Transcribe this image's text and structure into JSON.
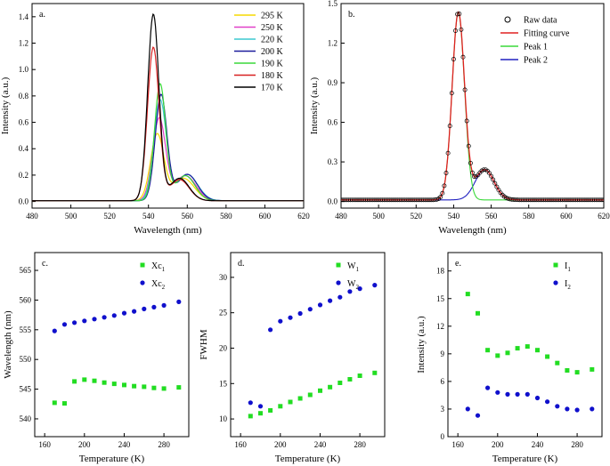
{
  "chart_data": [
    {
      "id": "a",
      "type": "line",
      "panel_label": "a.",
      "xlabel": "Wavelength (nm)",
      "ylabel": "Intensity (a.u.)",
      "xlim": [
        480,
        620
      ],
      "ylim": [
        -0.05,
        1.5
      ],
      "xticks": [
        480,
        500,
        520,
        540,
        560,
        580,
        600,
        620
      ],
      "yticks": [
        0.0,
        0.2,
        0.4,
        0.6,
        0.8,
        1.0,
        1.2,
        1.4
      ],
      "xtick_labels": [
        "480",
        "500",
        "520",
        "540",
        "560",
        "580",
        "600",
        "620"
      ],
      "ytick_labels": [
        "0.0",
        "0.2",
        "0.4",
        "0.6",
        "0.8",
        "1.0",
        "1.2",
        "1.4"
      ],
      "legend_position": "top-right",
      "series": [
        {
          "name": "295 K",
          "color": "#f5d800",
          "peak_x": 544.5,
          "amp1": 0.5,
          "w1": 3.4,
          "x2": 558,
          "amp2": 0.17,
          "w2": 5.6
        },
        {
          "name": "250 K",
          "color": "#e040c8",
          "peak_x": 545.5,
          "amp1": 0.62,
          "w1": 3.3,
          "x2": 559,
          "amp2": 0.19,
          "w2": 5.5
        },
        {
          "name": "220 K",
          "color": "#3cc8d0",
          "peak_x": 546.0,
          "amp1": 0.76,
          "w1": 3.2,
          "x2": 560,
          "amp2": 0.2,
          "w2": 5.4
        },
        {
          "name": "200 K",
          "color": "#1c1c9c",
          "peak_x": 546.5,
          "amp1": 0.8,
          "w1": 3.0,
          "x2": 560,
          "amp2": 0.2,
          "w2": 5.2
        },
        {
          "name": "190 K",
          "color": "#3ad83a",
          "peak_x": 546.0,
          "amp1": 0.88,
          "w1": 2.9,
          "x2": 559,
          "amp2": 0.19,
          "w2": 5.0
        },
        {
          "name": "180 K",
          "color": "#d82020",
          "peak_x": 542.5,
          "amp1": 1.16,
          "w1": 3.0,
          "x2": 556,
          "amp2": 0.16,
          "w2": 5.0
        },
        {
          "name": "170 K",
          "color": "#000000",
          "peak_x": 542.5,
          "amp1": 1.41,
          "w1": 2.9,
          "x2": 556,
          "amp2": 0.17,
          "w2": 5.0
        }
      ]
    },
    {
      "id": "b",
      "type": "line",
      "panel_label": "b.",
      "xlabel": "Wavelength (nm)",
      "ylabel": "Intensity (a.u.)",
      "xlim": [
        480,
        620
      ],
      "ylim": [
        -0.05,
        1.5
      ],
      "xticks": [
        480,
        500,
        520,
        540,
        560,
        580,
        600,
        620
      ],
      "yticks": [
        0.0,
        0.3,
        0.6,
        0.9,
        1.2,
        1.5
      ],
      "xtick_labels": [
        "480",
        "500",
        "520",
        "540",
        "560",
        "580",
        "600",
        "620"
      ],
      "ytick_labels": [
        "0.0",
        "0.3",
        "0.6",
        "0.9",
        "1.2",
        "1.5"
      ],
      "legend_position": "top-right",
      "legend": [
        "Raw data",
        "Fitting curve",
        "Peak 1",
        "Peak 2"
      ],
      "colors": {
        "raw": "#000000",
        "fit": "#e02020",
        "peak1": "#3ad83a",
        "peak2": "#2020c0"
      },
      "peak1": {
        "center": 542.5,
        "amp": 1.42,
        "width": 3.3
      },
      "peak2": {
        "center": 556.5,
        "amp": 0.23,
        "width": 5.0
      }
    },
    {
      "id": "c",
      "type": "scatter",
      "panel_label": "c.",
      "xlabel": "Temperature (K)",
      "ylabel": "Wavelength (nm)",
      "xlim": [
        150,
        305
      ],
      "ylim": [
        537,
        568
      ],
      "xticks": [
        160,
        200,
        240,
        280
      ],
      "yticks": [
        540,
        545,
        550,
        555,
        560,
        565
      ],
      "xtick_labels": [
        "160",
        "200",
        "240",
        "280"
      ],
      "ytick_labels": [
        "540",
        "545",
        "550",
        "555",
        "560",
        "565"
      ],
      "legend_position": "top-right",
      "series": [
        {
          "name": "Xc",
          "sub": "1",
          "marker": "square",
          "color": "#22dd22",
          "x": [
            170,
            180,
            190,
            200,
            210,
            220,
            230,
            240,
            250,
            260,
            270,
            280,
            295
          ],
          "y": [
            542.7,
            542.6,
            546.3,
            546.6,
            546.4,
            546.1,
            545.9,
            545.7,
            545.5,
            545.4,
            545.2,
            545.1,
            545.3
          ]
        },
        {
          "name": "Xc",
          "sub": "2",
          "marker": "circle",
          "color": "#1010cc",
          "x": [
            170,
            180,
            190,
            200,
            210,
            220,
            230,
            240,
            250,
            260,
            270,
            280,
            295
          ],
          "y": [
            554.8,
            555.9,
            556.2,
            556.5,
            556.8,
            557.1,
            557.4,
            557.8,
            558.1,
            558.5,
            558.8,
            559.1,
            559.7
          ]
        }
      ]
    },
    {
      "id": "d",
      "type": "scatter",
      "panel_label": "d.",
      "xlabel": "Temperature (K)",
      "ylabel": "FWHM",
      "xlim": [
        150,
        305
      ],
      "ylim": [
        7.5,
        33.5
      ],
      "xticks": [
        160,
        200,
        240,
        280
      ],
      "yticks": [
        10,
        15,
        20,
        25,
        30
      ],
      "xtick_labels": [
        "160",
        "200",
        "240",
        "280"
      ],
      "ytick_labels": [
        "10",
        "15",
        "20",
        "25",
        "30"
      ],
      "legend_position": "top-right",
      "series": [
        {
          "name": "W",
          "sub": "1",
          "marker": "square",
          "color": "#22dd22",
          "x": [
            170,
            180,
            190,
            200,
            210,
            220,
            230,
            240,
            250,
            260,
            270,
            280,
            295
          ],
          "y": [
            10.4,
            10.8,
            11.2,
            11.8,
            12.4,
            12.9,
            13.4,
            14.0,
            14.5,
            15.1,
            15.6,
            16.1,
            16.5
          ]
        },
        {
          "name": "W",
          "sub": "2",
          "marker": "circle",
          "color": "#1010cc",
          "x": [
            170,
            180,
            190,
            200,
            210,
            220,
            230,
            240,
            250,
            260,
            270,
            280,
            295
          ],
          "y": [
            12.3,
            11.8,
            22.6,
            23.8,
            24.3,
            24.9,
            25.5,
            26.1,
            26.7,
            27.2,
            28.0,
            28.4,
            28.9
          ]
        }
      ]
    },
    {
      "id": "e",
      "type": "scatter",
      "panel_label": "e.",
      "xlabel": "Temperature (K)",
      "ylabel": "Intensity (a.u.)",
      "xlim": [
        150,
        305
      ],
      "ylim": [
        0,
        20
      ],
      "xticks": [
        160,
        200,
        240,
        280
      ],
      "yticks": [
        0,
        3,
        6,
        9,
        12,
        15,
        18
      ],
      "xtick_labels": [
        "160",
        "200",
        "240",
        "280"
      ],
      "ytick_labels": [
        "0",
        "3",
        "6",
        "9",
        "12",
        "15",
        "18"
      ],
      "legend_position": "top-right",
      "series": [
        {
          "name": "I",
          "sub": "1",
          "marker": "square",
          "color": "#22dd22",
          "x": [
            170,
            180,
            190,
            200,
            210,
            220,
            230,
            240,
            250,
            260,
            270,
            280,
            295
          ],
          "y": [
            15.5,
            13.4,
            9.4,
            8.8,
            9.1,
            9.6,
            9.8,
            9.4,
            8.7,
            8.0,
            7.2,
            7.0,
            7.3
          ]
        },
        {
          "name": "I",
          "sub": "2",
          "marker": "circle",
          "color": "#1010cc",
          "x": [
            170,
            180,
            190,
            200,
            210,
            220,
            230,
            240,
            250,
            260,
            270,
            280,
            295
          ],
          "y": [
            3.0,
            2.3,
            5.3,
            4.8,
            4.6,
            4.6,
            4.6,
            4.2,
            3.8,
            3.3,
            3.0,
            2.9,
            3.0
          ]
        }
      ]
    }
  ]
}
